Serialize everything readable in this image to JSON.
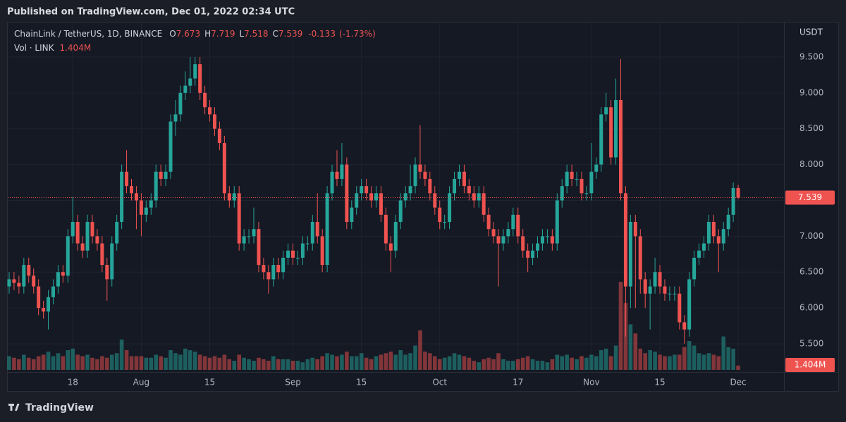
{
  "published": "Published on TradingView.com, Dec 01, 2022 02:34 UTC",
  "brand": "TradingView",
  "chart_data": {
    "type": "candlestick",
    "title": "ChainLink / TetherUS, 1D, BINANCE",
    "ohlc_keys": [
      "O",
      "H",
      "L",
      "C"
    ],
    "change": -0.133,
    "change_pct": {
      "value": -1.73,
      "label": "(-1.73%)"
    },
    "volume_title": "Vol · LINK",
    "volume_last_label": "1.404M",
    "price_unit": "USDT",
    "up_color": "#26a69a",
    "down_color": "#ef5350",
    "grid": true,
    "ylim": [
      5.107,
      9.981
    ],
    "yticks": [
      {
        "value": 5.5,
        "label": "5.500"
      },
      {
        "value": 6.0,
        "label": "6.000"
      },
      {
        "value": 6.5,
        "label": "6.500"
      },
      {
        "value": 7.0,
        "label": "7.000"
      },
      {
        "value": 7.5,
        "label": "7.500"
      },
      {
        "value": 8.0,
        "label": "8.000"
      },
      {
        "value": 8.5,
        "label": "8.500"
      },
      {
        "value": 9.0,
        "label": "9.000"
      },
      {
        "value": 9.5,
        "label": "9.500"
      }
    ],
    "categories": [
      null,
      null,
      null,
      null,
      null,
      null,
      null,
      null,
      null,
      null,
      null,
      null,
      null,
      "18",
      null,
      null,
      null,
      null,
      null,
      null,
      null,
      null,
      null,
      null,
      null,
      null,
      null,
      "Aug",
      null,
      null,
      null,
      null,
      null,
      null,
      null,
      null,
      null,
      null,
      null,
      null,
      null,
      "15",
      null,
      null,
      null,
      null,
      null,
      null,
      null,
      null,
      null,
      null,
      null,
      null,
      null,
      null,
      null,
      null,
      "Sep",
      null,
      null,
      null,
      null,
      null,
      null,
      null,
      null,
      null,
      null,
      null,
      null,
      null,
      "15",
      null,
      null,
      null,
      null,
      null,
      null,
      null,
      null,
      null,
      null,
      null,
      null,
      null,
      null,
      null,
      "Oct",
      null,
      null,
      null,
      null,
      null,
      null,
      null,
      null,
      null,
      null,
      null,
      null,
      null,
      null,
      null,
      "17",
      null,
      null,
      null,
      null,
      null,
      null,
      null,
      null,
      null,
      null,
      null,
      null,
      null,
      null,
      "Nov",
      null,
      null,
      null,
      null,
      null,
      null,
      null,
      null,
      null,
      null,
      null,
      null,
      null,
      "15",
      null,
      null,
      null,
      null,
      null,
      null,
      null,
      null,
      null,
      null,
      null,
      null,
      null,
      null,
      null,
      "Dec"
    ],
    "open": [
      6.3,
      6.4,
      6.35,
      6.3,
      6.6,
      6.45,
      6.3,
      6.0,
      5.95,
      6.15,
      6.3,
      6.5,
      6.45,
      7.0,
      7.2,
      6.9,
      6.8,
      7.2,
      7.0,
      6.9,
      6.6,
      6.4,
      6.9,
      7.2,
      7.9,
      7.7,
      7.6,
      7.5,
      7.3,
      7.4,
      7.5,
      7.9,
      7.8,
      7.9,
      8.6,
      8.7,
      9.0,
      9.1,
      9.2,
      9.4,
      9.0,
      8.8,
      8.7,
      8.5,
      8.3,
      7.6,
      7.5,
      7.6,
      6.9,
      7.0,
      7.0,
      7.1,
      6.6,
      6.5,
      6.4,
      6.6,
      6.5,
      6.7,
      6.8,
      6.7,
      6.7,
      6.9,
      6.9,
      7.2,
      7.0,
      6.6,
      7.6,
      7.9,
      7.8,
      8.0,
      7.2,
      7.4,
      7.6,
      7.7,
      7.6,
      7.5,
      7.6,
      7.3,
      6.9,
      6.8,
      7.2,
      7.5,
      7.6,
      7.7,
      8.0,
      7.9,
      7.8,
      7.6,
      7.4,
      7.2,
      7.2,
      7.6,
      7.8,
      7.9,
      7.7,
      7.6,
      7.5,
      7.6,
      7.3,
      7.1,
      7.0,
      6.9,
      7.0,
      7.1,
      7.3,
      7.0,
      6.8,
      6.7,
      6.8,
      6.9,
      7.0,
      7.0,
      6.9,
      7.5,
      7.7,
      7.9,
      7.8,
      7.8,
      7.6,
      7.6,
      7.9,
      8.0,
      8.7,
      8.8,
      8.1,
      8.9,
      7.6,
      6.3,
      7.2,
      7.0,
      6.4,
      6.2,
      6.3,
      6.5,
      6.3,
      6.2,
      6.2,
      6.2,
      5.8,
      5.7,
      6.4,
      6.7,
      6.8,
      6.9,
      7.2,
      7.0,
      6.9,
      7.1,
      7.3,
      7.673
    ],
    "high": [
      6.5,
      6.5,
      6.45,
      6.7,
      6.7,
      6.55,
      6.4,
      6.1,
      6.25,
      6.4,
      6.6,
      6.6,
      7.1,
      7.55,
      7.3,
      7.0,
      7.3,
      7.3,
      7.1,
      7.0,
      6.7,
      7.0,
      7.3,
      8.0,
      8.2,
      7.8,
      7.7,
      7.6,
      7.5,
      7.6,
      8.0,
      8.0,
      8.0,
      8.7,
      8.9,
      9.1,
      9.3,
      9.5,
      9.5,
      9.5,
      9.1,
      8.9,
      8.8,
      8.6,
      8.4,
      7.7,
      7.7,
      7.7,
      7.1,
      7.1,
      7.4,
      7.2,
      6.7,
      6.6,
      6.7,
      6.7,
      6.8,
      6.9,
      6.9,
      6.8,
      7.0,
      7.0,
      7.3,
      7.6,
      7.1,
      7.7,
      8.0,
      8.2,
      8.3,
      8.1,
      7.5,
      7.7,
      7.8,
      7.8,
      7.7,
      7.7,
      7.7,
      7.4,
      7.0,
      7.3,
      7.6,
      7.7,
      8.0,
      8.1,
      8.55,
      8.0,
      7.9,
      7.7,
      7.5,
      7.3,
      7.7,
      7.9,
      8.0,
      8.0,
      7.8,
      7.7,
      7.7,
      7.7,
      7.4,
      7.2,
      7.1,
      7.1,
      7.2,
      7.4,
      7.4,
      7.1,
      6.9,
      6.9,
      7.0,
      7.1,
      7.1,
      7.1,
      7.6,
      7.8,
      8.0,
      8.0,
      7.9,
      7.9,
      7.7,
      8.3,
      8.1,
      8.8,
      9.0,
      8.9,
      9.2,
      9.47,
      7.7,
      7.3,
      7.3,
      7.1,
      6.5,
      6.4,
      6.7,
      6.6,
      6.4,
      6.3,
      6.3,
      6.3,
      5.9,
      6.5,
      6.8,
      6.9,
      7.0,
      7.3,
      7.3,
      7.1,
      7.2,
      7.4,
      7.75,
      7.719
    ],
    "low": [
      6.2,
      6.25,
      6.2,
      6.2,
      6.35,
      6.2,
      5.9,
      5.85,
      5.7,
      6.05,
      6.2,
      6.35,
      6.35,
      6.9,
      6.8,
      6.7,
      6.7,
      6.9,
      6.8,
      6.5,
      6.1,
      6.3,
      6.8,
      7.1,
      7.6,
      7.5,
      7.1,
      7.0,
      7.2,
      7.3,
      7.4,
      7.7,
      7.7,
      7.8,
      8.4,
      8.6,
      8.9,
      9.0,
      9.1,
      8.9,
      8.7,
      8.6,
      8.4,
      8.2,
      7.5,
      7.4,
      7.4,
      6.8,
      6.8,
      6.9,
      6.9,
      6.5,
      6.4,
      6.2,
      6.3,
      6.4,
      6.4,
      6.6,
      6.6,
      6.6,
      6.6,
      6.8,
      6.8,
      6.9,
      6.5,
      6.5,
      7.5,
      7.7,
      7.7,
      7.1,
      7.1,
      7.3,
      7.5,
      7.5,
      7.4,
      7.4,
      7.2,
      6.8,
      6.5,
      6.7,
      7.1,
      7.4,
      7.5,
      7.6,
      7.8,
      7.7,
      7.5,
      7.3,
      7.1,
      7.1,
      7.1,
      7.5,
      7.7,
      7.6,
      7.5,
      7.4,
      7.4,
      7.2,
      7.0,
      6.9,
      6.3,
      6.8,
      6.9,
      7.0,
      6.9,
      6.7,
      6.5,
      6.6,
      6.7,
      6.8,
      6.9,
      6.8,
      6.8,
      7.4,
      7.6,
      7.7,
      7.7,
      7.5,
      7.5,
      7.5,
      7.8,
      7.9,
      8.6,
      8.0,
      8.0,
      7.5,
      5.6,
      6.0,
      6.0,
      6.2,
      6.0,
      5.7,
      6.2,
      6.2,
      6.1,
      6.1,
      6.1,
      5.7,
      5.5,
      5.6,
      6.3,
      6.6,
      6.7,
      6.8,
      6.9,
      6.5,
      6.8,
      7.0,
      7.2,
      7.518
    ],
    "close": [
      6.4,
      6.35,
      6.3,
      6.6,
      6.45,
      6.3,
      6.0,
      5.95,
      6.15,
      6.3,
      6.5,
      6.45,
      7.0,
      7.2,
      6.9,
      6.8,
      7.2,
      7.0,
      6.9,
      6.6,
      6.4,
      6.9,
      7.2,
      7.9,
      7.7,
      7.6,
      7.5,
      7.3,
      7.4,
      7.5,
      7.9,
      7.8,
      7.9,
      8.6,
      8.7,
      9.0,
      9.1,
      9.2,
      9.4,
      9.0,
      8.8,
      8.7,
      8.5,
      8.3,
      7.6,
      7.5,
      7.6,
      6.9,
      7.0,
      7.0,
      7.1,
      6.6,
      6.5,
      6.4,
      6.6,
      6.5,
      6.7,
      6.8,
      6.7,
      6.7,
      6.9,
      6.9,
      7.2,
      7.0,
      6.6,
      7.6,
      7.9,
      7.8,
      8.0,
      7.2,
      7.4,
      7.6,
      7.7,
      7.6,
      7.5,
      7.6,
      7.3,
      6.9,
      6.8,
      7.2,
      7.5,
      7.6,
      7.7,
      8.0,
      7.9,
      7.8,
      7.6,
      7.4,
      7.2,
      7.2,
      7.6,
      7.8,
      7.9,
      7.7,
      7.6,
      7.5,
      7.6,
      7.3,
      7.1,
      7.0,
      6.9,
      7.0,
      7.1,
      7.3,
      7.0,
      6.8,
      6.7,
      6.8,
      6.9,
      7.0,
      7.0,
      6.9,
      7.5,
      7.7,
      7.9,
      7.8,
      7.8,
      7.6,
      7.6,
      7.9,
      8.0,
      8.7,
      8.8,
      8.1,
      8.9,
      7.6,
      6.3,
      7.2,
      7.0,
      6.4,
      6.2,
      6.3,
      6.5,
      6.3,
      6.2,
      6.2,
      6.2,
      5.8,
      5.7,
      6.4,
      6.7,
      6.8,
      6.9,
      7.2,
      7.0,
      6.9,
      7.1,
      7.3,
      7.673,
      7.539
    ],
    "volume": [
      4500000,
      4000000,
      3500000,
      5000000,
      4000000,
      3500000,
      4500000,
      5000000,
      6000000,
      4500000,
      5500000,
      4500000,
      6500000,
      7000000,
      5000000,
      4500000,
      5000000,
      4000000,
      3500000,
      4500000,
      4000000,
      5000000,
      5500000,
      10000000,
      6500000,
      4500000,
      4500000,
      4500000,
      4000000,
      4000000,
      5000000,
      4500000,
      4000000,
      6500000,
      5500000,
      5000000,
      7000000,
      6500000,
      6000000,
      5000000,
      4500000,
      4000000,
      4500000,
      4000000,
      5000000,
      3500000,
      3000000,
      5000000,
      4000000,
      3500000,
      3000000,
      4000000,
      3500000,
      3000000,
      4500000,
      3500000,
      3500000,
      3500000,
      3000000,
      3000000,
      2500000,
      3500000,
      4000000,
      3500000,
      4500000,
      5500000,
      5000000,
      4500000,
      5000000,
      6000000,
      4500000,
      4500000,
      5500000,
      4000000,
      3500000,
      4500000,
      5000000,
      5500000,
      6000000,
      5000000,
      6500000,
      5000000,
      5500000,
      8000000,
      13000000,
      6000000,
      5500000,
      4500000,
      3500000,
      4000000,
      4500000,
      5500000,
      5000000,
      4500000,
      4000000,
      3000000,
      2500000,
      3500000,
      4000000,
      3500000,
      5500000,
      3500000,
      3000000,
      3000000,
      3500000,
      4000000,
      4500000,
      3500000,
      3000000,
      3000000,
      2500000,
      3500000,
      5000000,
      4500000,
      5000000,
      4000000,
      3500000,
      4500000,
      4000000,
      5000000,
      4500000,
      6500000,
      7000000,
      4500000,
      8000000,
      29000000,
      22000000,
      15000000,
      12000000,
      7000000,
      5500000,
      6500000,
      6000000,
      5000000,
      4500000,
      4500000,
      5000000,
      5000000,
      7500000,
      9500000,
      8000000,
      5500000,
      5000000,
      5500000,
      5000000,
      4500000,
      11000000,
      7500000,
      7000000,
      1404000
    ]
  }
}
